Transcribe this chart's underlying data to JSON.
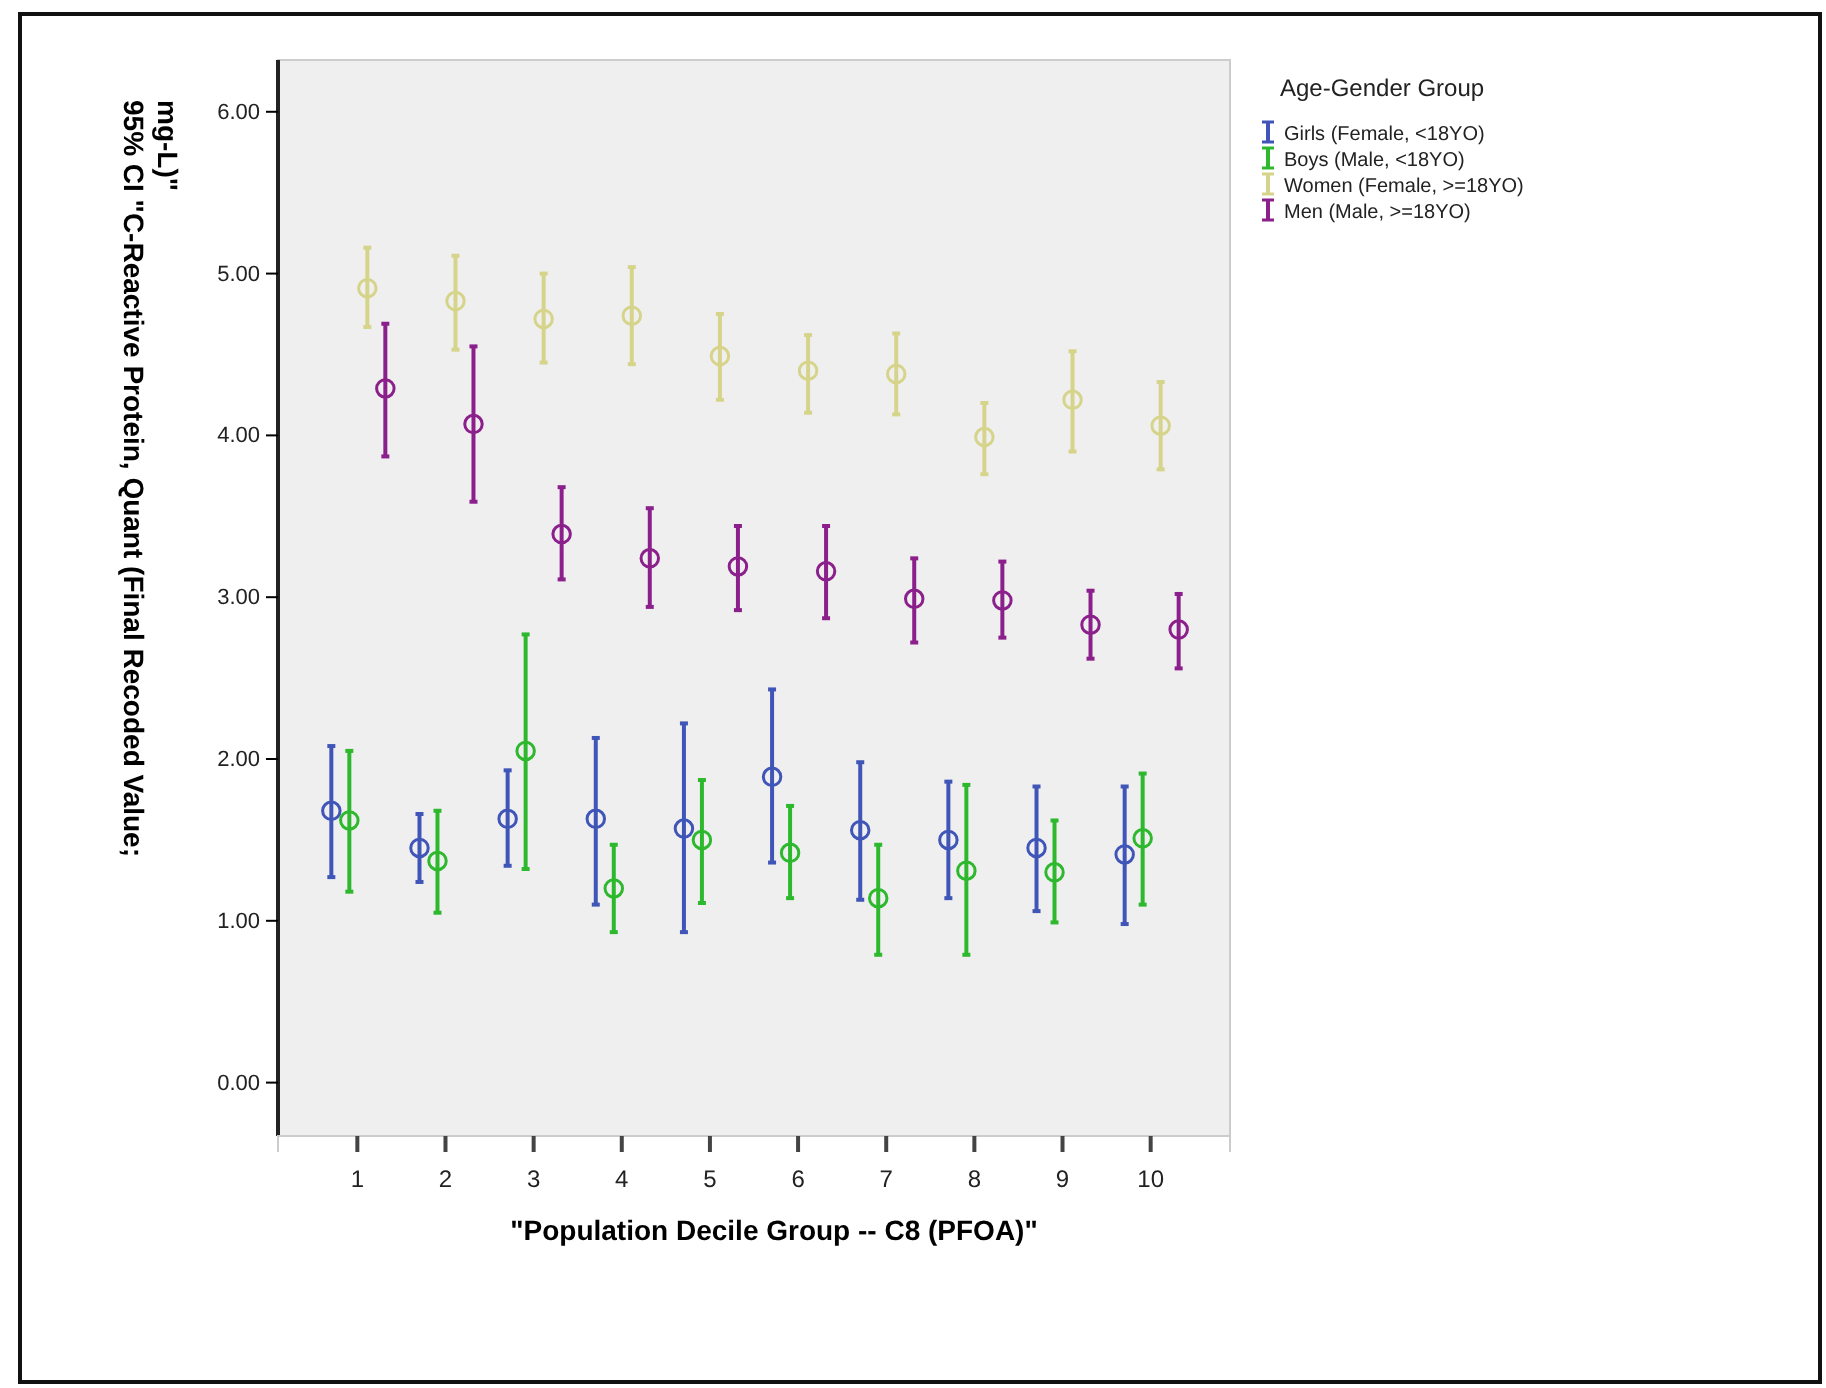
{
  "chart_data": {
    "type": "scatter",
    "xlabel": "\"Population Decile Group -- C8 (PFOA)\"",
    "ylabel": "95% CI \"C-Reactive Protein, Quant (Final Recoded Value; mg-L)\"",
    "legend_title": "Age-Gender Group",
    "legend": "right",
    "marker": "circle",
    "grid": false,
    "categories": [
      "1",
      "2",
      "3",
      "4",
      "5",
      "6",
      "7",
      "8",
      "9",
      "10"
    ],
    "ylim": [
      -0.33,
      6.32
    ],
    "yticks": [
      {
        "value": 0,
        "label": "0.00"
      },
      {
        "value": 1,
        "label": "1.00"
      },
      {
        "value": 2,
        "label": "2.00"
      },
      {
        "value": 3,
        "label": "3.00"
      },
      {
        "value": 4,
        "label": "4.00"
      },
      {
        "value": 5,
        "label": "5.00"
      },
      {
        "value": 6,
        "label": "6.00"
      }
    ],
    "series": [
      {
        "name": "Girls (Female, <18YO)",
        "color": "#4055b8",
        "values": [
          1.68,
          1.45,
          1.63,
          1.63,
          1.57,
          1.89,
          1.56,
          1.5,
          1.45,
          1.41
        ],
        "errors": [
          [
            1.27,
            2.08
          ],
          [
            1.24,
            1.66
          ],
          [
            1.34,
            1.93
          ],
          [
            1.1,
            2.13
          ],
          [
            0.93,
            2.22
          ],
          [
            1.36,
            2.43
          ],
          [
            1.13,
            1.98
          ],
          [
            1.14,
            1.86
          ],
          [
            1.06,
            1.83
          ],
          [
            0.98,
            1.83
          ]
        ]
      },
      {
        "name": "Boys (Male, <18YO)",
        "color": "#2db82d",
        "values": [
          1.62,
          1.37,
          2.05,
          1.2,
          1.5,
          1.42,
          1.14,
          1.31,
          1.3,
          1.51
        ],
        "errors": [
          [
            1.18,
            2.05
          ],
          [
            1.05,
            1.68
          ],
          [
            1.32,
            2.77
          ],
          [
            0.93,
            1.47
          ],
          [
            1.11,
            1.87
          ],
          [
            1.14,
            1.71
          ],
          [
            0.79,
            1.47
          ],
          [
            0.79,
            1.84
          ],
          [
            0.99,
            1.62
          ],
          [
            1.1,
            1.91
          ]
        ]
      },
      {
        "name": "Women (Female, >=18YO)",
        "color": "#d6d48a",
        "values": [
          4.91,
          4.83,
          4.72,
          4.74,
          4.49,
          4.4,
          4.38,
          3.99,
          4.22,
          4.06
        ],
        "errors": [
          [
            4.67,
            5.16
          ],
          [
            4.53,
            5.11
          ],
          [
            4.45,
            5.0
          ],
          [
            4.44,
            5.04
          ],
          [
            4.22,
            4.75
          ],
          [
            4.14,
            4.62
          ],
          [
            4.13,
            4.63
          ],
          [
            3.76,
            4.2
          ],
          [
            3.9,
            4.52
          ],
          [
            3.79,
            4.33
          ]
        ]
      },
      {
        "name": "Men (Male, >=18YO)",
        "color": "#8b1f8b",
        "values": [
          4.29,
          4.07,
          3.39,
          3.24,
          3.19,
          3.16,
          2.99,
          2.98,
          2.83,
          2.8
        ],
        "errors": [
          [
            3.87,
            4.69
          ],
          [
            3.59,
            4.55
          ],
          [
            3.11,
            3.68
          ],
          [
            2.94,
            3.55
          ],
          [
            2.92,
            3.44
          ],
          [
            2.87,
            3.44
          ],
          [
            2.72,
            3.24
          ],
          [
            2.75,
            3.22
          ],
          [
            2.62,
            3.04
          ],
          [
            2.56,
            3.02
          ]
        ]
      }
    ]
  }
}
